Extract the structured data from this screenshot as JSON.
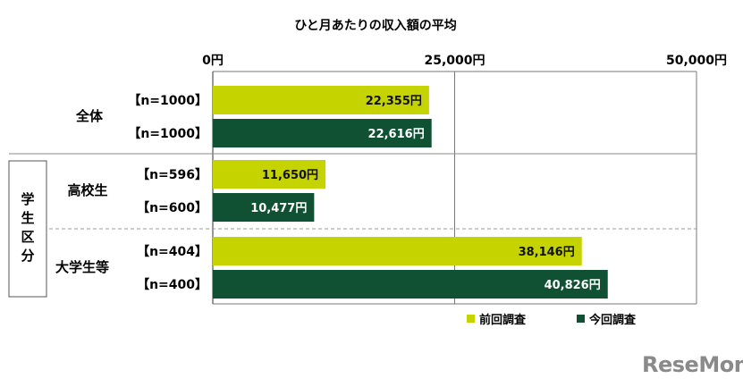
{
  "chart_data": {
    "type": "bar",
    "orientation": "horizontal",
    "title": "ひと月あたりの収入額の平均",
    "xlim": [
      0,
      50000
    ],
    "x_ticks": [
      "0円",
      "25,000円",
      "50,000円"
    ],
    "x_tick_values": [
      0,
      25000,
      50000
    ],
    "grid": true,
    "legend_position": "bottom-right",
    "category_group_label": "学生区分",
    "categories": [
      "全体",
      "高校生",
      "大学生等"
    ],
    "series": [
      {
        "name": "前回調査",
        "color": "#c5d300",
        "n_labels": [
          "【n=1000】",
          "【n=596】",
          "【n=404】"
        ],
        "values": [
          22355,
          11650,
          38146
        ],
        "labels": [
          "22,355円",
          "11,650円",
          "38,146円"
        ]
      },
      {
        "name": "今回調査",
        "color": "#0f5132",
        "n_labels": [
          "【n=1000】",
          "【n=600】",
          "【n=400】"
        ],
        "values": [
          22616,
          10477,
          40826
        ],
        "labels": [
          "22,616円",
          "10,477円",
          "40,826円"
        ]
      }
    ]
  },
  "watermark": "ReseMom"
}
